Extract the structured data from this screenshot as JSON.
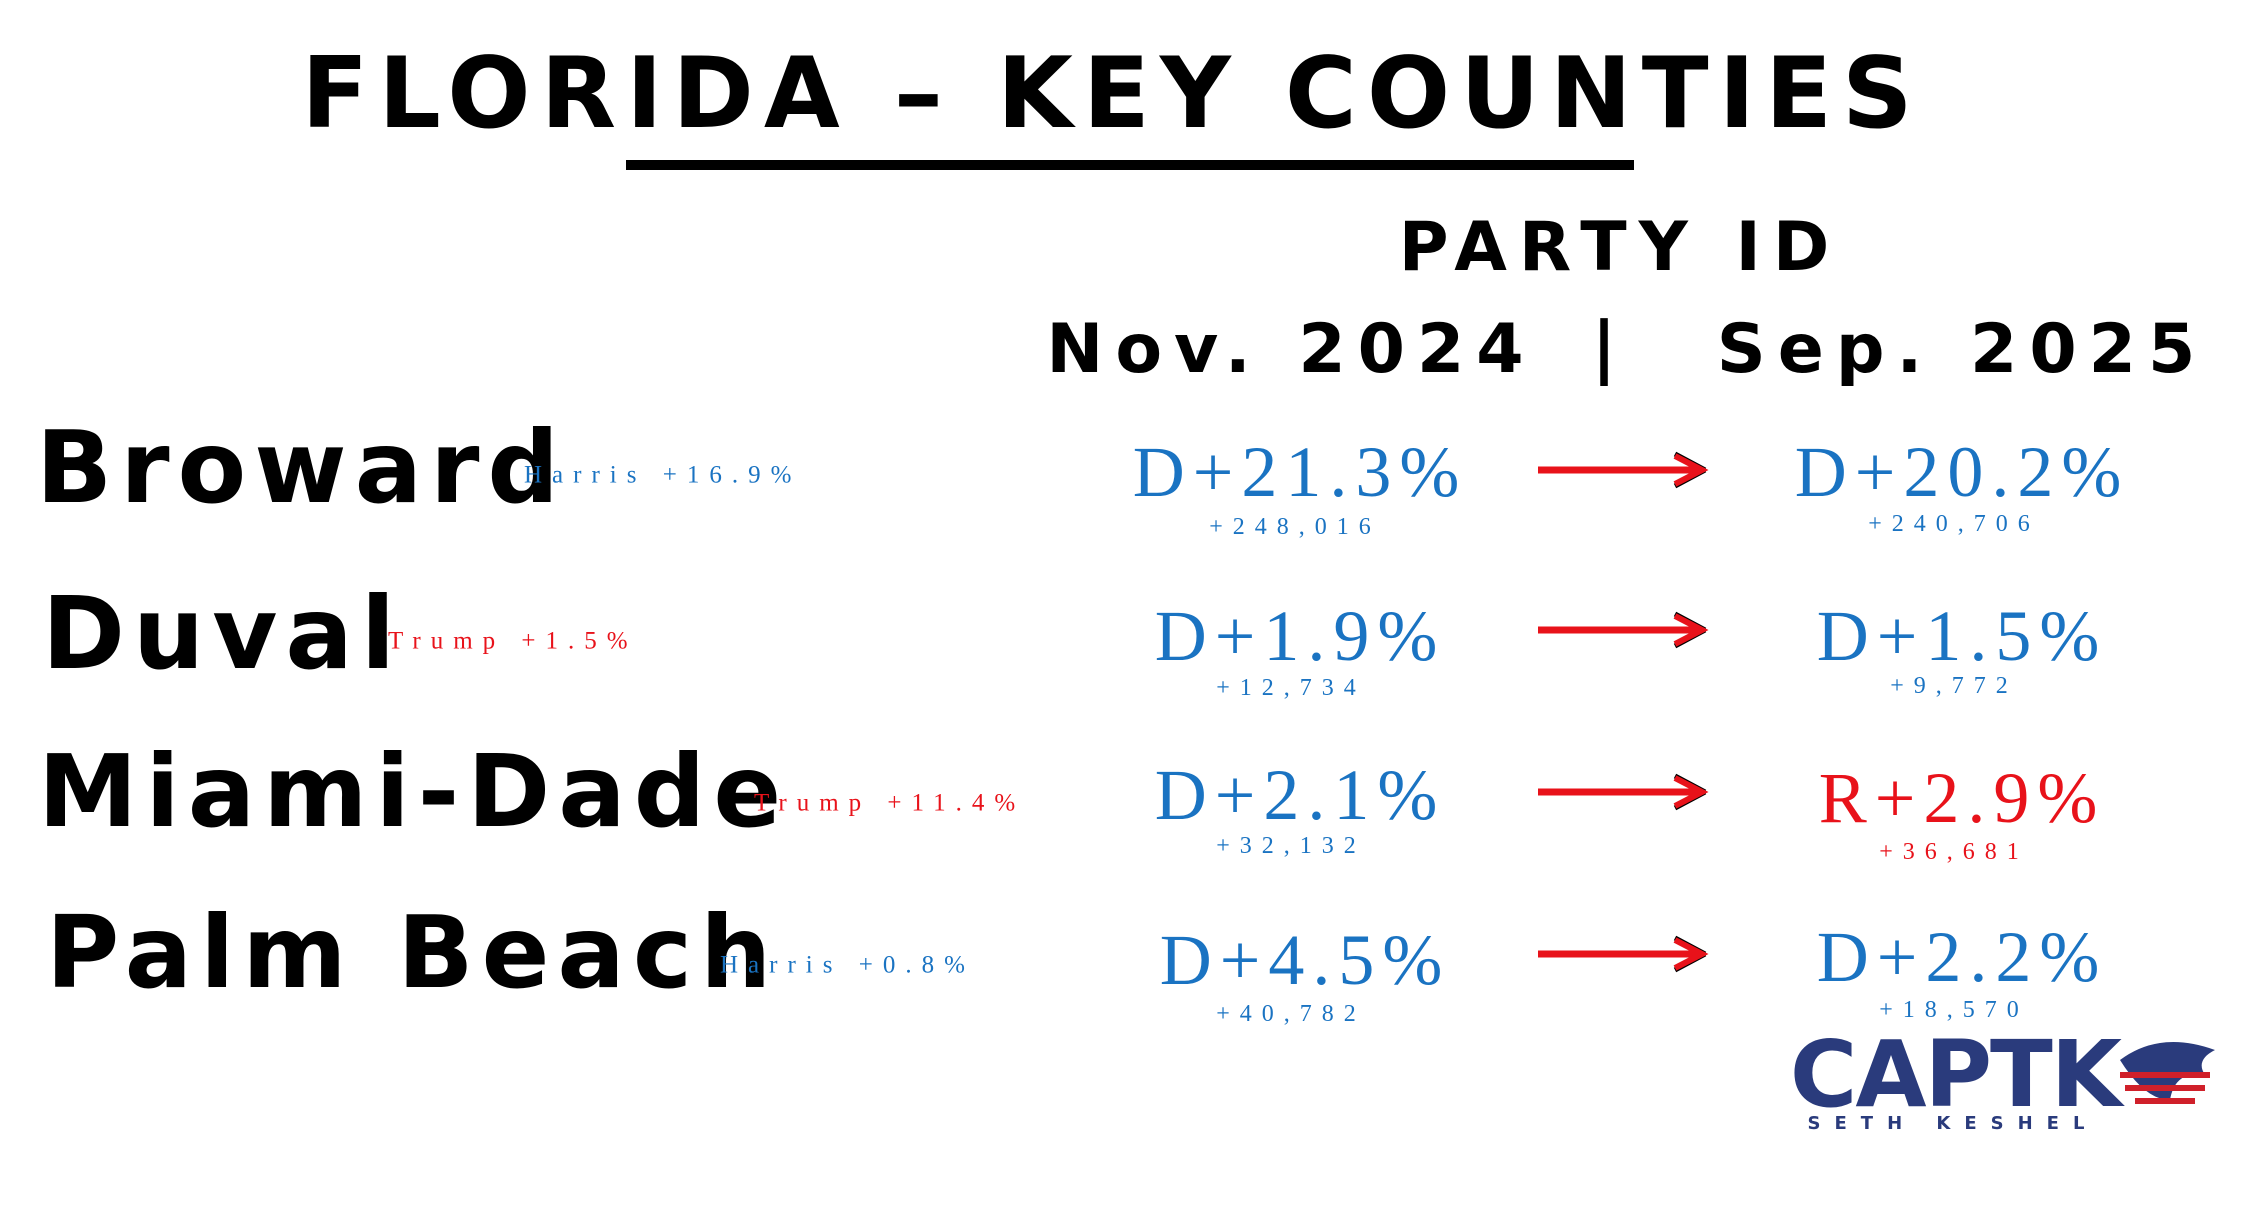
{
  "header": {
    "title": "FLORIDA – KEY COUNTIES",
    "subtitle": "PARTY ID",
    "col_before": "Nov. 2024",
    "separator": "|",
    "col_after": "Sep. 2025"
  },
  "rows": [
    {
      "county": "Broward",
      "result": "Harris +16.9%",
      "before": "D+21.3%",
      "before_count": "+248,016",
      "after": "D+20.2%",
      "after_count": "+240,706"
    },
    {
      "county": "Duval",
      "result": "Trump +1.5%",
      "before": "D+1.9%",
      "before_count": "+12,734",
      "after": "D+1.5%",
      "after_count": "+9,772"
    },
    {
      "county": "Miami-Dade",
      "result": "Trump +11.4%",
      "before": "D+2.1%",
      "before_count": "+32,132",
      "after": "R+2.9%",
      "after_count": "+36,681"
    },
    {
      "county": "Palm Beach",
      "result": "Harris +0.8%",
      "before": "D+4.5%",
      "before_count": "+40,782",
      "after": "D+2.2%",
      "after_count": "+18,570"
    }
  ],
  "logo": {
    "name": "CAPTK",
    "tagline": "SETH KESHEL"
  }
}
